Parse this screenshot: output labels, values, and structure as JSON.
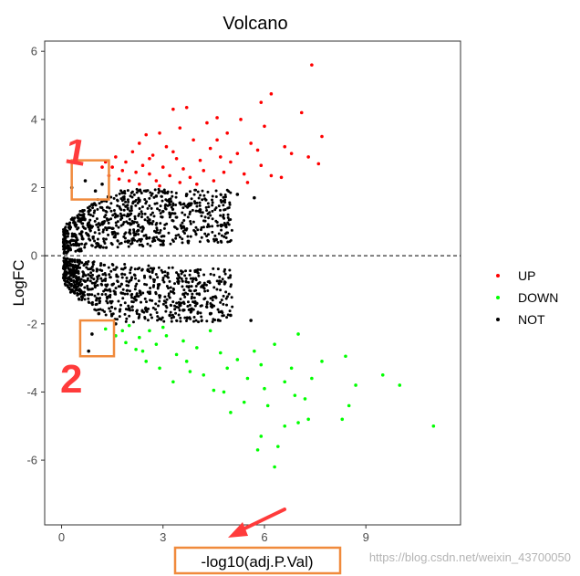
{
  "chart_data": {
    "type": "scatter",
    "title": "Volcano",
    "xlabel": "-log10(adj.P.Val)",
    "ylabel": "LogFC",
    "xlim": [
      -0.5,
      11.8
    ],
    "ylim": [
      -7.9,
      6.3
    ],
    "x_ticks": [
      0,
      3,
      6,
      9
    ],
    "y_ticks": [
      -6,
      -4,
      -2,
      0,
      2,
      4,
      6
    ],
    "hline": 0,
    "grid": false,
    "legend": {
      "placement": "right",
      "entries": [
        "UP",
        "DOWN",
        "NOT"
      ]
    },
    "colors": {
      "UP": "#ff0000",
      "DOWN": "#00ff00",
      "NOT": "#000000",
      "annotation_box": "#f08a3c",
      "annotation_arrow": "#ff3b3b"
    },
    "series": [
      {
        "name": "UP",
        "points": [
          [
            7.4,
            5.6
          ],
          [
            6.2,
            4.75
          ],
          [
            5.9,
            4.5
          ],
          [
            3.7,
            4.35
          ],
          [
            3.3,
            4.3
          ],
          [
            4.6,
            4.05
          ],
          [
            7.1,
            4.2
          ],
          [
            5.3,
            4.0
          ],
          [
            4.3,
            3.9
          ],
          [
            3.5,
            3.75
          ],
          [
            6.0,
            3.8
          ],
          [
            2.9,
            3.6
          ],
          [
            2.5,
            3.55
          ],
          [
            7.7,
            3.5
          ],
          [
            4.9,
            3.6
          ],
          [
            5.6,
            3.3
          ],
          [
            3.9,
            3.4
          ],
          [
            3.1,
            3.2
          ],
          [
            6.6,
            3.2
          ],
          [
            2.3,
            3.3
          ],
          [
            4.4,
            3.15
          ],
          [
            7.3,
            2.9
          ],
          [
            7.6,
            2.7
          ],
          [
            5.2,
            3.0
          ],
          [
            6.8,
            3.0
          ],
          [
            2.1,
            3.05
          ],
          [
            2.7,
            2.95
          ],
          [
            3.4,
            2.85
          ],
          [
            4.1,
            2.8
          ],
          [
            5.0,
            2.75
          ],
          [
            5.9,
            2.65
          ],
          [
            4.7,
            2.9
          ],
          [
            1.6,
            2.9
          ],
          [
            1.9,
            2.75
          ],
          [
            2.4,
            2.65
          ],
          [
            3.0,
            2.6
          ],
          [
            3.6,
            2.55
          ],
          [
            4.2,
            2.5
          ],
          [
            4.8,
            2.45
          ],
          [
            5.4,
            2.4
          ],
          [
            6.2,
            2.35
          ],
          [
            1.3,
            2.75
          ],
          [
            1.5,
            2.6
          ],
          [
            1.8,
            2.5
          ],
          [
            2.2,
            2.45
          ],
          [
            2.6,
            2.4
          ],
          [
            3.2,
            2.35
          ],
          [
            3.8,
            2.3
          ],
          [
            4.5,
            2.2
          ],
          [
            5.5,
            2.15
          ],
          [
            1.4,
            2.35
          ],
          [
            1.7,
            2.25
          ],
          [
            2.0,
            2.2
          ],
          [
            2.8,
            2.2
          ],
          [
            3.5,
            2.15
          ],
          [
            4.0,
            2.1
          ],
          [
            2.3,
            2.1
          ],
          [
            2.9,
            2.05
          ],
          [
            1.2,
            2.6
          ],
          [
            6.5,
            2.3
          ],
          [
            5.8,
            3.1
          ],
          [
            4.6,
            3.4
          ],
          [
            3.3,
            3.05
          ],
          [
            2.6,
            2.85
          ]
        ]
      },
      {
        "name": "DOWN",
        "points": [
          [
            11.0,
            -5.0
          ],
          [
            9.5,
            -3.5
          ],
          [
            10.0,
            -3.8
          ],
          [
            8.7,
            -3.8
          ],
          [
            8.5,
            -4.4
          ],
          [
            8.3,
            -4.8
          ],
          [
            7.3,
            -4.8
          ],
          [
            7.0,
            -4.9
          ],
          [
            6.6,
            -5.0
          ],
          [
            5.9,
            -5.3
          ],
          [
            6.4,
            -5.6
          ],
          [
            6.3,
            -6.2
          ],
          [
            5.8,
            -5.7
          ],
          [
            7.7,
            -3.1
          ],
          [
            8.4,
            -2.95
          ],
          [
            6.8,
            -3.3
          ],
          [
            7.4,
            -3.6
          ],
          [
            6.9,
            -4.1
          ],
          [
            6.0,
            -3.9
          ],
          [
            5.4,
            -4.3
          ],
          [
            5.0,
            -4.6
          ],
          [
            4.5,
            -3.95
          ],
          [
            4.2,
            -3.5
          ],
          [
            3.8,
            -3.4
          ],
          [
            3.3,
            -3.7
          ],
          [
            2.9,
            -3.3
          ],
          [
            2.5,
            -3.1
          ],
          [
            2.2,
            -2.75
          ],
          [
            1.9,
            -2.55
          ],
          [
            1.6,
            -2.35
          ],
          [
            1.3,
            -2.15
          ],
          [
            2.0,
            -2.05
          ],
          [
            2.6,
            -2.2
          ],
          [
            3.1,
            -2.35
          ],
          [
            3.6,
            -2.5
          ],
          [
            4.0,
            -2.7
          ],
          [
            4.7,
            -2.85
          ],
          [
            5.2,
            -3.05
          ],
          [
            5.7,
            -2.8
          ],
          [
            6.3,
            -2.6
          ],
          [
            7.0,
            -2.3
          ],
          [
            4.4,
            -2.2
          ],
          [
            3.4,
            -2.9
          ],
          [
            2.8,
            -2.6
          ],
          [
            2.3,
            -2.4
          ],
          [
            5.5,
            -3.6
          ],
          [
            6.1,
            -4.4
          ],
          [
            4.8,
            -4.0
          ],
          [
            3.0,
            -2.1
          ],
          [
            1.8,
            -2.2
          ],
          [
            2.4,
            -2.8
          ],
          [
            3.7,
            -3.1
          ],
          [
            4.9,
            -3.3
          ],
          [
            5.9,
            -3.2
          ],
          [
            6.6,
            -3.7
          ],
          [
            7.2,
            -4.2
          ]
        ]
      },
      {
        "name": "NOT",
        "points": [
          [
            0.7,
            2.2
          ],
          [
            1.0,
            1.9
          ],
          [
            0.3,
            2.0
          ],
          [
            1.2,
            2.1
          ],
          [
            0.9,
            -2.3
          ],
          [
            0.8,
            -2.8
          ],
          [
            3.7,
            1.8
          ],
          [
            2.5,
            1.9
          ],
          [
            4.8,
            1.6
          ],
          [
            5.7,
            1.7
          ],
          [
            2.8,
            1.75
          ],
          [
            1.8,
            1.85
          ],
          [
            3.2,
            1.5
          ],
          [
            2.0,
            1.2
          ],
          [
            1.2,
            0.95
          ],
          [
            0.6,
            0.7
          ],
          [
            0.3,
            0.45
          ],
          [
            0.15,
            0.25
          ],
          [
            4.1,
            1.35
          ],
          [
            2.6,
            1.05
          ],
          [
            1.5,
            0.8
          ],
          [
            3.5,
            1.55
          ],
          [
            5.2,
            1.8
          ],
          [
            0.9,
            1.5
          ],
          [
            0.5,
            1.1
          ],
          [
            2.3,
            1.6
          ],
          [
            1.6,
            -2.0
          ],
          [
            2.9,
            -1.85
          ],
          [
            4.4,
            -1.7
          ],
          [
            5.6,
            -1.9
          ],
          [
            3.6,
            -1.6
          ],
          [
            2.2,
            -1.3
          ],
          [
            1.3,
            -1.0
          ],
          [
            0.7,
            -0.75
          ],
          [
            0.35,
            -0.5
          ],
          [
            0.15,
            -0.25
          ],
          [
            4.0,
            -1.4
          ],
          [
            2.6,
            -1.1
          ],
          [
            1.5,
            -0.85
          ],
          [
            5.0,
            -1.75
          ],
          [
            1.1,
            -1.7
          ],
          [
            0.6,
            -1.2
          ],
          [
            3.2,
            -1.75
          ],
          [
            0.4,
            -0.9
          ],
          [
            2.0,
            -1.55
          ],
          [
            0.8,
            1.3
          ],
          [
            3.0,
            1.3
          ],
          [
            1.9,
            1.45
          ]
        ]
      }
    ],
    "annotations": {
      "box_1_label": "1",
      "box_2_label": "2",
      "box_1": {
        "x_range": [
          0.3,
          1.4
        ],
        "y_range": [
          1.65,
          2.8
        ]
      },
      "box_2": {
        "x_range": [
          0.55,
          1.55
        ],
        "y_range": [
          -2.95,
          -1.9
        ]
      }
    },
    "watermark": "https://blog.csdn.net/weixin_43700050"
  }
}
